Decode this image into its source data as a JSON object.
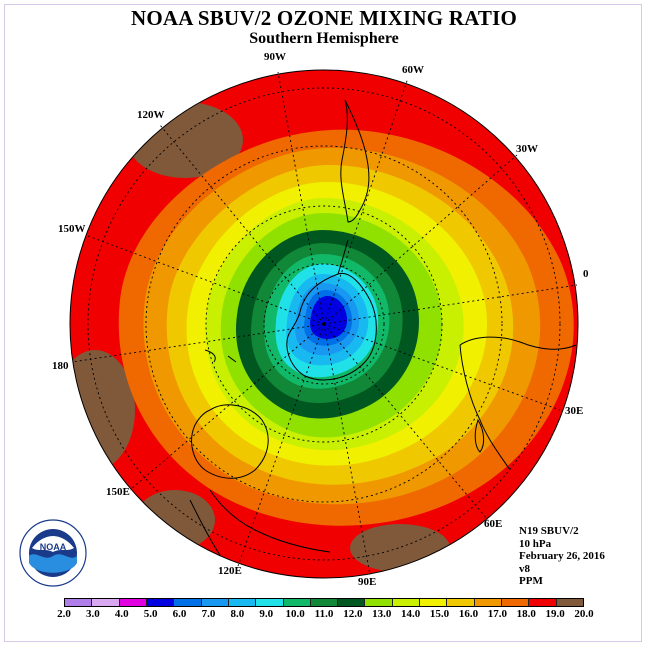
{
  "title": "NOAA SBUV/2 OZONE MIXING RATIO",
  "subtitle": "Southern Hemisphere",
  "longitude_labels": [
    "90W",
    "60W",
    "30W",
    "0",
    "30E",
    "60E",
    "90E",
    "120E",
    "150E",
    "180",
    "150W",
    "120W"
  ],
  "info": {
    "satellite": "N19 SBUV/2",
    "level": "10 hPa",
    "date": "February 26, 2016",
    "version": "v8",
    "units": "PPM"
  },
  "colorbar": {
    "ticks": [
      "2.0",
      "3.0",
      "4.0",
      "5.0",
      "6.0",
      "7.0",
      "8.0",
      "9.0",
      "10.0",
      "11.0",
      "12.0",
      "13.0",
      "14.0",
      "15.0",
      "16.0",
      "17.0",
      "18.0",
      "19.0",
      "20.0"
    ],
    "colors": [
      "#b07ee8",
      "#d8a8f0",
      "#e000e0",
      "#0000e0",
      "#0070e8",
      "#1898f0",
      "#18b8f0",
      "#20e0e8",
      "#10b868",
      "#108838",
      "#005820",
      "#90e000",
      "#c8f000",
      "#f0f000",
      "#f0c800",
      "#f09800",
      "#f06800",
      "#f00000",
      "#80583a"
    ]
  },
  "logo": {
    "text": "NOAA",
    "icon": "noaa-logo-icon"
  }
}
